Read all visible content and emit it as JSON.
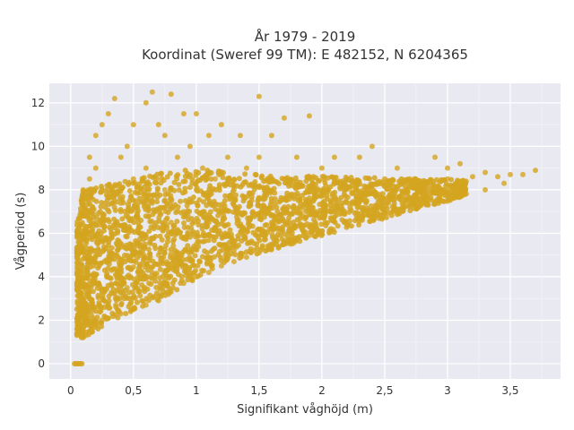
{
  "chart_data": {
    "type": "scatter",
    "title_line1": "År 1979 - 2019",
    "title_line2": "Koordinat (Sweref 99 TM): E 482152, N 6204365",
    "xlabel": "Signifikant våghöjd (m)",
    "ylabel": "Vågperiod (s)",
    "xlim": [
      -0.17,
      3.9
    ],
    "ylim": [
      -0.7,
      12.9
    ],
    "x_ticks": [
      0,
      0.5,
      1,
      1.5,
      2,
      2.5,
      3,
      3.5
    ],
    "x_tick_labels": [
      "0",
      "0,5",
      "1",
      "1,5",
      "2",
      "2,5",
      "3",
      "3,5"
    ],
    "y_ticks": [
      0,
      2,
      4,
      6,
      8,
      10,
      12
    ],
    "y_tick_labels": [
      "0",
      "2",
      "4",
      "6",
      "8",
      "10",
      "12"
    ],
    "grid": true,
    "marker_color": "#d4a520",
    "plot_background": "#e9e9f1",
    "points": [
      [
        0.03,
        0
      ],
      [
        0.04,
        0
      ],
      [
        0.05,
        0
      ],
      [
        0.06,
        0
      ],
      [
        0.07,
        0
      ],
      [
        0.08,
        0
      ],
      [
        0.09,
        0
      ],
      [
        0.05,
        1.4
      ],
      [
        0.08,
        1.3
      ],
      [
        0.1,
        1.2
      ],
      [
        0.12,
        1.3
      ],
      [
        0.15,
        1.5
      ],
      [
        0.2,
        1.8
      ],
      [
        0.25,
        2.0
      ],
      [
        0.3,
        2.1
      ],
      [
        0.4,
        2.3
      ],
      [
        0.5,
        2.5
      ],
      [
        0.6,
        2.7
      ],
      [
        0.7,
        2.9
      ],
      [
        0.8,
        3.3
      ],
      [
        0.9,
        3.7
      ],
      [
        1.0,
        4.0
      ],
      [
        1.1,
        4.2
      ],
      [
        1.2,
        4.5
      ],
      [
        1.3,
        4.7
      ],
      [
        1.4,
        4.9
      ],
      [
        1.5,
        5.1
      ],
      [
        1.6,
        5.3
      ],
      [
        1.7,
        5.5
      ],
      [
        1.8,
        5.7
      ],
      [
        1.9,
        5.9
      ],
      [
        2.0,
        6.1
      ],
      [
        2.2,
        6.4
      ],
      [
        2.4,
        6.7
      ],
      [
        2.6,
        7.0
      ],
      [
        2.8,
        7.4
      ],
      [
        3.0,
        7.8
      ],
      [
        0.08,
        2.5
      ],
      [
        0.08,
        4.0
      ],
      [
        0.08,
        5.5
      ],
      [
        0.08,
        7.0
      ],
      [
        0.1,
        8.0
      ],
      [
        0.1,
        3.0
      ],
      [
        0.12,
        6.0
      ],
      [
        0.15,
        8.5
      ],
      [
        0.15,
        9.5
      ],
      [
        0.2,
        9.0
      ],
      [
        0.2,
        10.5
      ],
      [
        0.25,
        11.0
      ],
      [
        0.25,
        6.5
      ],
      [
        0.3,
        8.0
      ],
      [
        0.3,
        11.5
      ],
      [
        0.35,
        12.2
      ],
      [
        0.35,
        5.0
      ],
      [
        0.4,
        9.5
      ],
      [
        0.4,
        7.0
      ],
      [
        0.45,
        10.0
      ],
      [
        0.45,
        3.5
      ],
      [
        0.5,
        11.0
      ],
      [
        0.5,
        8.5
      ],
      [
        0.55,
        6.0
      ],
      [
        0.55,
        4.5
      ],
      [
        0.6,
        12.0
      ],
      [
        0.6,
        9.0
      ],
      [
        0.65,
        12.5
      ],
      [
        0.65,
        7.5
      ],
      [
        0.7,
        11.0
      ],
      [
        0.7,
        5.0
      ],
      [
        0.75,
        10.5
      ],
      [
        0.75,
        8.0
      ],
      [
        0.8,
        12.4
      ],
      [
        0.8,
        6.5
      ],
      [
        0.85,
        9.5
      ],
      [
        0.85,
        4.5
      ],
      [
        0.9,
        11.5
      ],
      [
        0.9,
        7.0
      ],
      [
        0.95,
        10.0
      ],
      [
        1.0,
        11.5
      ],
      [
        1.0,
        8.0
      ],
      [
        1.0,
        5.5
      ],
      [
        1.05,
        9.0
      ],
      [
        1.1,
        10.5
      ],
      [
        1.1,
        6.5
      ],
      [
        1.15,
        8.5
      ],
      [
        1.2,
        11.0
      ],
      [
        1.2,
        7.0
      ],
      [
        1.25,
        9.5
      ],
      [
        1.3,
        8.0
      ],
      [
        1.3,
        5.5
      ],
      [
        1.35,
        10.5
      ],
      [
        1.4,
        9.0
      ],
      [
        1.45,
        7.0
      ],
      [
        1.5,
        12.3
      ],
      [
        1.5,
        9.5
      ],
      [
        1.55,
        8.0
      ],
      [
        1.6,
        10.5
      ],
      [
        1.6,
        6.5
      ],
      [
        1.7,
        11.3
      ],
      [
        1.7,
        8.5
      ],
      [
        1.8,
        9.5
      ],
      [
        1.8,
        7.0
      ],
      [
        1.9,
        11.4
      ],
      [
        1.9,
        8.0
      ],
      [
        2.0,
        9.0
      ],
      [
        2.0,
        7.0
      ],
      [
        2.1,
        9.5
      ],
      [
        2.1,
        7.5
      ],
      [
        2.2,
        8.5
      ],
      [
        2.3,
        9.5
      ],
      [
        2.3,
        7.5
      ],
      [
        2.4,
        10.0
      ],
      [
        2.5,
        8.5
      ],
      [
        2.6,
        9.0
      ],
      [
        2.7,
        8.5
      ],
      [
        2.8,
        8.0
      ],
      [
        2.9,
        9.5
      ],
      [
        3.0,
        8.5
      ],
      [
        3.0,
        9.0
      ],
      [
        3.1,
        9.2
      ],
      [
        3.1,
        8.3
      ],
      [
        3.2,
        8.6
      ],
      [
        3.3,
        8.0
      ],
      [
        3.4,
        8.6
      ],
      [
        3.5,
        8.7
      ],
      [
        3.6,
        8.7
      ],
      [
        3.7,
        8.9
      ],
      [
        3.3,
        8.8
      ],
      [
        3.45,
        8.3
      ]
    ]
  }
}
